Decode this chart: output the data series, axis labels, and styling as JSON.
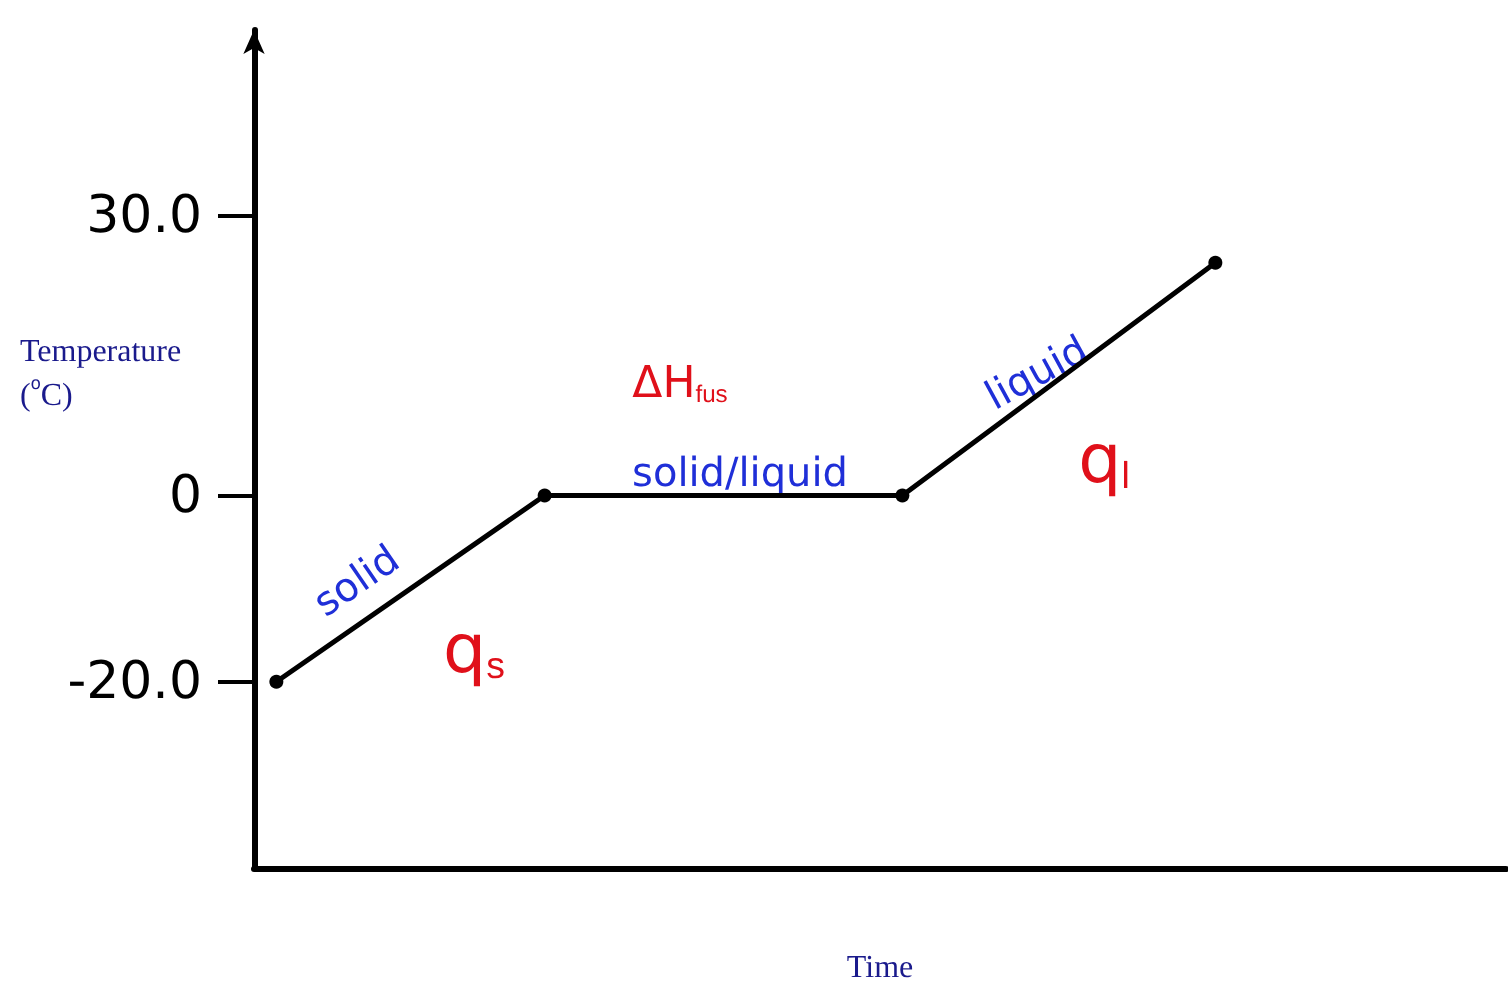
{
  "chart_data": {
    "type": "line",
    "xlabel": "Time",
    "ylabel": "Temperature ($^{o}$C)",
    "categories": [
      null,
      null,
      null,
      null,
      null,
      null,
      null,
      null,
      null,
      null,
      null,
      null,
      null,
      null,
      null,
      null,
      null,
      null,
      null,
      null,
      null,
      null,
      null,
      null,
      null,
      null,
      null,
      null
    ],
    "series": [
      {
        "color": "#000000",
        "values": [
          -20,
          null,
          null,
          null,
          null,
          null,
          0,
          null,
          null,
          null,
          null,
          null,
          null,
          null,
          0,
          null,
          null,
          null,
          null,
          null,
          null,
          25,
          null,
          null,
          null,
          null,
          null,
          null
        ]
      }
    ],
    "ylim": [
      -40,
      50
    ],
    "yticks": [
      {
        "value": -20,
        "label": "-20.0"
      },
      {
        "value": 0,
        "label": "0"
      },
      {
        "value": 30,
        "label": "30.0"
      }
    ],
    "tick_labels": "y",
    "grid": false,
    "marker": "circle",
    "line_style": "solid",
    "annotations": [
      "solid",
      "q$_{s}$",
      "ΔH$_{fus}$",
      "solid/liquid",
      "liquid",
      "q$_{l}$"
    ]
  }
}
